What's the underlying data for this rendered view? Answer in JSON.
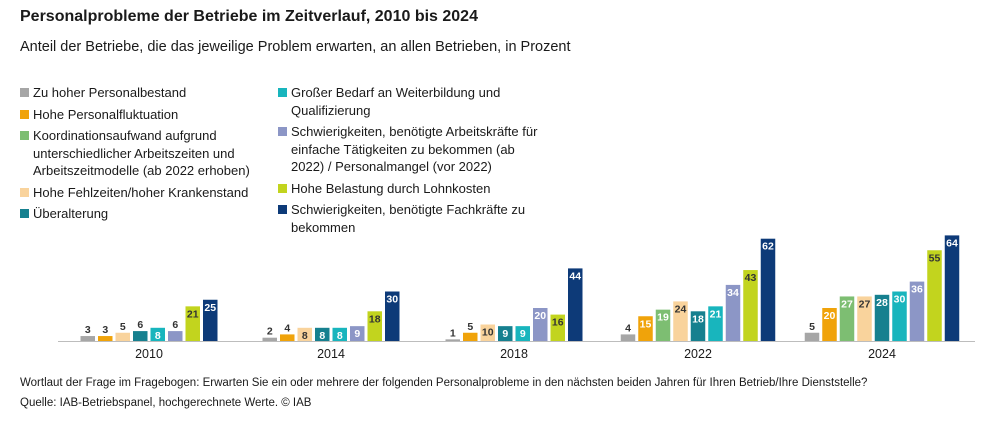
{
  "title": "Personalprobleme der Betriebe im Zeitverlauf, 2010 bis 2024",
  "subtitle": "Anteil der Betriebe, die das jeweilige Problem erwarten, an allen Betrieben, in Prozent",
  "footer": {
    "note": "Wortlaut der Frage im Fragebogen: Erwarten Sie ein oder mehrere der folgenden Personalprobleme in den nächsten beiden Jahren für Ihren Betrieb/Ihre Dienststelle?",
    "source": "Quelle: IAB-Betriebspanel, hochgerechnete Werte.  © IAB"
  },
  "legend": [
    {
      "label": "Zu hoher Personalbestand"
    },
    {
      "label": "Hohe Personalfluktuation"
    },
    {
      "label": "Koordinationsaufwand aufgrund unterschiedlicher Arbeitszeiten und Arbeitszeitmodelle (ab 2022 erhoben)"
    },
    {
      "label": "Hohe Fehlzeiten/hoher Krankenstand"
    },
    {
      "label": "Überalterung"
    },
    {
      "label": "Großer Bedarf an Weiterbildung und Qualifizierung"
    },
    {
      "label": "Schwierigkeiten, benötigte Arbeitskräfte für einfache Tätigkeiten zu bekommen (ab 2022) / Personalmangel (vor 2022)"
    },
    {
      "label": "Hohe Belastung durch Lohnkosten"
    },
    {
      "label": "Schwierigkeiten, benötigte Fachkräfte zu bekommen"
    }
  ],
  "chart_data": {
    "type": "bar",
    "categories": [
      "2010",
      "2014",
      "2018",
      "2022",
      "2024"
    ],
    "ylim": [
      0,
      70
    ],
    "grid": false,
    "series": [
      {
        "name": "Zu hoher Personalbestand",
        "color": "#a6a6a6",
        "values": [
          3,
          2,
          1,
          4,
          5
        ]
      },
      {
        "name": "Hohe Personalfluktuation",
        "color": "#f0a30a",
        "values": [
          3,
          4,
          5,
          15,
          20
        ]
      },
      {
        "name": "Koordinationsaufwand aufgrund unterschiedlicher Arbeitszeiten und Arbeitszeitmodelle (ab 2022 erhoben)",
        "color": "#7dbe72",
        "values": [
          null,
          null,
          null,
          19,
          27
        ]
      },
      {
        "name": "Hohe Fehlzeiten/hoher Krankenstand",
        "color": "#f9d39c",
        "values": [
          5,
          8,
          10,
          24,
          27
        ]
      },
      {
        "name": "Überalterung",
        "color": "#16808f",
        "values": [
          6,
          8,
          9,
          18,
          28
        ]
      },
      {
        "name": "Großer Bedarf an Weiterbildung und Qualifizierung",
        "color": "#18b5bd",
        "values": [
          8,
          8,
          9,
          21,
          30
        ]
      },
      {
        "name": "Schwierigkeiten, benötigte Arbeitskräfte für einfache Tätigkeiten zu bekommen (ab 2022) / Personalmangel (vor 2022)",
        "color": "#8c96c6",
        "values": [
          6,
          9,
          20,
          34,
          36
        ]
      },
      {
        "name": "Hohe Belastung durch Lohnkosten",
        "color": "#c2d41e",
        "values": [
          21,
          18,
          16,
          43,
          55
        ]
      },
      {
        "name": "Schwierigkeiten, benötigte Fachkräfte zu bekommen",
        "color": "#0d3a78",
        "values": [
          25,
          30,
          44,
          62,
          64
        ]
      }
    ]
  }
}
